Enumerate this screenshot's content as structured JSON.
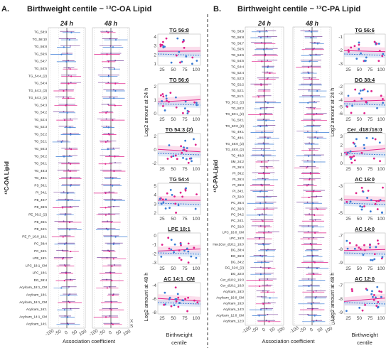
{
  "panels": [
    {
      "letter": "A.",
      "title": "Birthweight centile ~ ¹³C-OA Lipid",
      "y_axis_label": "¹³C-OA Lipid",
      "x_axis_label": "Association coefficient",
      "time_labels": [
        "24 h",
        "48 h"
      ],
      "x_ticks": [
        "-100",
        "-50",
        "0",
        "50",
        "100"
      ],
      "legend_x": "X",
      "legend_s": "S",
      "lipids": [
        "TG_58:9",
        "TG_58:10",
        "TG_56:8",
        "TG_56:6",
        "TG_54:7",
        "TG_54:5",
        "TG_54:4_(2)",
        "TG_54:4",
        "TG_54:3_(3)",
        "TG_54:3_(2)",
        "TG_54:3",
        "TG_54:2",
        "TG_52:4",
        "TG_52:3",
        "TG_52:2",
        "TG_52:1",
        "TG_50:3",
        "TG_50:2",
        "TG_50:1",
        "TG_48:3",
        "TG_48:1",
        "PS_36:1",
        "PI_34:1",
        "PE_40:7",
        "PE_38:5",
        "PE_36:2_(2)",
        "PE_36:1",
        "PE_34:1",
        "PE_P_16:0_18:1",
        "PC_38:4",
        "PC_34:1",
        "LPE_18:1",
        "LPC_18:1_CM",
        "LPC_18:1",
        "DG_38:4",
        "Acylcarn_18:1_CM",
        "Acylcarn_18:1",
        "Acylcarn_16:1_CM",
        "Acylcarn_16:1",
        "Acylcarn_14:1_CM",
        "Acylcarn_14:1"
      ],
      "scatter_y_label_24": "Log2 amount at 24 h",
      "scatter_y_label_48": "Log2 amount at 48 h",
      "scatter_x_label": "Birthweight centile",
      "scatters": [
        {
          "title": "TG 56:8",
          "yticks": [
            "4",
            "3",
            "2",
            "1"
          ],
          "xticks": [
            "25",
            "50",
            "75",
            "100"
          ]
        },
        {
          "title": "TG 56:6",
          "yticks": [
            "2",
            "1",
            "0"
          ],
          "xticks": [
            "25",
            "50",
            "75",
            "100"
          ]
        },
        {
          "title": "TG 54:3 (2)",
          "yticks": [
            "2",
            "0",
            "-2"
          ],
          "xticks": [
            "25",
            "50",
            "75",
            "100"
          ]
        },
        {
          "title": "TG 54:4",
          "yticks": [
            "5",
            "4",
            "3",
            "2"
          ],
          "xticks": [
            "25",
            "50",
            "75",
            "100"
          ]
        },
        {
          "title": "LPE 18:1",
          "yticks": [
            "0",
            "-1",
            "-2",
            "-3"
          ],
          "xticks": [
            "25",
            "50",
            "75",
            "100"
          ]
        },
        {
          "title": "AC 14:1_CM",
          "yticks": [
            "-4",
            "-6",
            "-8"
          ],
          "xticks": [
            "25",
            "50",
            "75",
            "100"
          ]
        }
      ]
    },
    {
      "letter": "B.",
      "title": "Birthweight centile ~ ¹³C-PA Lipid",
      "y_axis_label": "¹³C-PA-Lipid",
      "x_axis_label": "Association coefficient",
      "time_labels": [
        "24 h",
        "48 h"
      ],
      "x_ticks": [
        "-100",
        "-50",
        "0",
        "50",
        "100"
      ],
      "legend_x": "X",
      "legend_s": "S",
      "lipids": [
        "TG_58:9",
        "TG_56:8",
        "TG_56:7",
        "TG_56:6",
        "TG_54:6",
        "TG_54:5",
        "TG_54:4",
        "TG_52:4",
        "TG_52:3",
        "TG_52:2",
        "TG_52:1",
        "TG_51:1",
        "TG_50:2_(2)",
        "TG_50:2",
        "TG_50:1_(2)",
        "TG_50:1",
        "TG_50:0_(2)",
        "TG_49:1",
        "TG_48:1",
        "TG_48:0_(3)",
        "TG_48:0_(2)",
        "TG_48:0",
        "SM_34:2",
        "PI_36:4",
        "PI_36:2",
        "PI_36:4",
        "PI_36:3",
        "PI_34:1",
        "PI_32:0",
        "PC_36:4",
        "PC_36:3",
        "PC_34:2",
        "PC_34:1",
        "PC_32:0",
        "LPC_16:0_CM",
        "LPC_16:0",
        "Hex1Cer_d18:1_16:0",
        "DG_38:4",
        "DG_36:3",
        "DG_34:2",
        "DG_32:0_(2)",
        "DG_32:0",
        "Cer_d18:2_16:0",
        "Cer_d18:1_16:0",
        "Acylcarn_18:0",
        "Acylcarn_16:0_CM",
        "Acylcarn_16:0",
        "Acylcarn_14:0",
        "Acylcarn_12:0_CM",
        "Acylcarn_12:0"
      ],
      "scatter_y_label_24": "Log2 amount at 24 h",
      "scatter_y_label_48": "Log2 amount at 48 h",
      "scatter_x_label": "Birthweight centile",
      "scatters": [
        {
          "title": "TG 56:6",
          "yticks": [
            "-1",
            "-2",
            "-3"
          ],
          "xticks": [
            "25",
            "50",
            "75",
            "100"
          ]
        },
        {
          "title": "DG 38:4",
          "yticks": [
            "-2",
            "-3",
            "-4",
            "-5",
            "-6"
          ],
          "xticks": [
            "25",
            "50",
            "75",
            "100"
          ]
        },
        {
          "title": "Cer_d18:/16:0",
          "yticks": [
            "3",
            "2",
            "1",
            "0"
          ],
          "xticks": [
            "25",
            "50",
            "75",
            "100"
          ]
        },
        {
          "title": "AC 16:0",
          "yticks": [
            "-3",
            "-4",
            "-5"
          ],
          "xticks": [
            "25",
            "50",
            "75",
            "100"
          ]
        },
        {
          "title": "AC 14:0",
          "yticks": [
            "-7",
            "-8",
            "-9"
          ],
          "xticks": [
            "25",
            "50",
            "75",
            "100"
          ]
        },
        {
          "title": "AC 12:0",
          "yticks": [
            "-7",
            "-8",
            "-9"
          ],
          "xticks": [
            "25",
            "50",
            "75",
            "100"
          ]
        }
      ]
    }
  ],
  "colors": {
    "pink": "#e0218a",
    "blue": "#3a7bd5",
    "purple": "#6a2c91",
    "grid": "#bbbbbb"
  }
}
